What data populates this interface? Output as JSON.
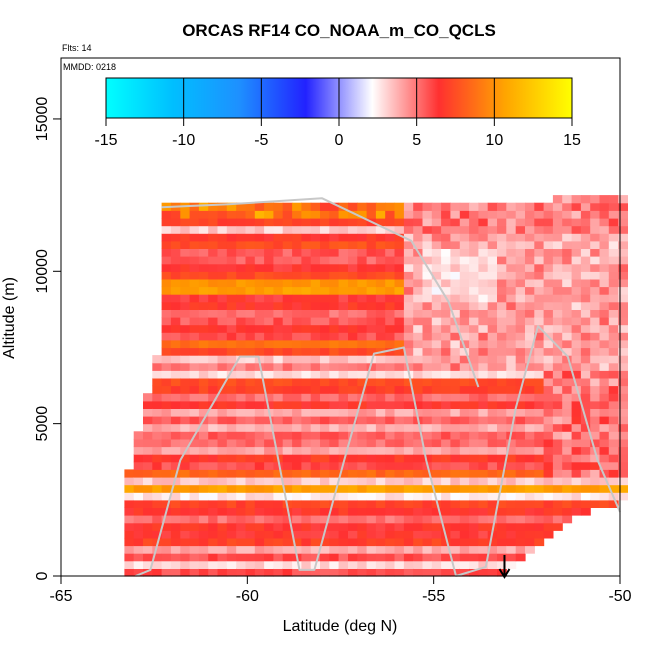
{
  "chart_data": {
    "type": "heatmap",
    "title": "ORCAS RF14 CO_NOAA_m_CO_QCLS",
    "annotations": {
      "flights": "Flts: 14",
      "date": "MMDD: 0218"
    },
    "xlabel": "Latitude (deg N)",
    "ylabel": "Altitude (m)",
    "xlim": [
      -65,
      -50
    ],
    "ylim": [
      0,
      17000
    ],
    "x_ticks": [
      -65,
      -60,
      -55,
      -50
    ],
    "y_ticks": [
      0,
      5000,
      10000,
      15000
    ],
    "x_tick_labels": [
      "-65",
      "-60",
      "-55",
      "-50"
    ],
    "y_tick_labels": [
      "0",
      "5000",
      "10000",
      "15000"
    ],
    "colorbar": {
      "ticks": [
        -15,
        -10,
        -5,
        0,
        5,
        10,
        15
      ],
      "tick_labels": [
        "-15",
        "-10",
        "-5",
        "0",
        "5",
        "10",
        "15"
      ],
      "range": [
        -15,
        15
      ],
      "colors": [
        "#00ffff",
        "#00bfff",
        "#1e90ff",
        "#2222ff",
        "#ffffff",
        "#ff3030",
        "#ffa500",
        "#ffff00"
      ]
    },
    "data_extent": {
      "lat_min": -63.2,
      "lat_max": -50,
      "alt_min": 0,
      "alt_max": 12400
    },
    "typical_value_range": [
      0,
      12
    ],
    "flight_track": [
      [
        -63.0,
        0
      ],
      [
        -62.6,
        200
      ],
      [
        -61.8,
        3800
      ],
      [
        -60.2,
        7200
      ],
      [
        -59.7,
        7200
      ],
      [
        -58.6,
        200
      ],
      [
        -58.2,
        200
      ],
      [
        -57.4,
        3800
      ],
      [
        -56.6,
        7300
      ],
      [
        -55.8,
        7500
      ],
      [
        -55.2,
        3800
      ],
      [
        -54.4,
        0
      ],
      [
        -53.6,
        300
      ],
      [
        -52.8,
        5500
      ],
      [
        -52.2,
        8200
      ],
      [
        -51.4,
        7200
      ],
      [
        -50.6,
        3800
      ],
      [
        -50.0,
        2100
      ]
    ],
    "flight_track_upper": [
      [
        -62.3,
        12100
      ],
      [
        -60.5,
        12200
      ],
      [
        -58.0,
        12400
      ],
      [
        -55.6,
        11000
      ],
      [
        -54.6,
        9000
      ],
      [
        -53.8,
        6200
      ]
    ],
    "marker": {
      "x": -53.1,
      "label": "arrow"
    }
  }
}
